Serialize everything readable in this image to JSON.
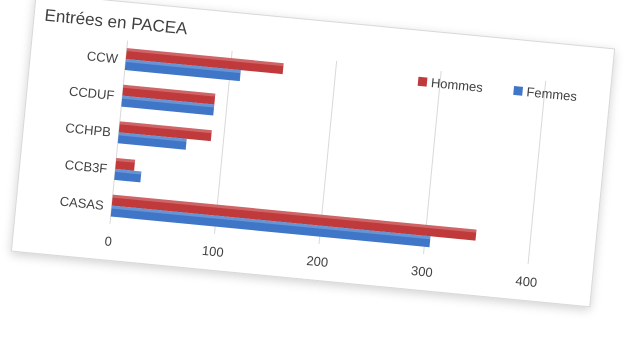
{
  "chart_data": {
    "type": "bar",
    "orientation": "horizontal",
    "title": "Entrées en PACEA",
    "categories": [
      "CCW",
      "CCDUF",
      "CCHPB",
      "CCB3F",
      "CASAS"
    ],
    "series": [
      {
        "name": "Hommes",
        "color": "#c0393b",
        "values": [
          150,
          88,
          88,
          18,
          348
        ]
      },
      {
        "name": "Femmes",
        "color": "#3f76c8",
        "values": [
          110,
          88,
          65,
          25,
          305
        ]
      }
    ],
    "xlim": [
      0,
      400
    ],
    "xticks": [
      "0",
      "100",
      "200",
      "300",
      "400"
    ],
    "grid": true,
    "legend_position": "top-right"
  }
}
